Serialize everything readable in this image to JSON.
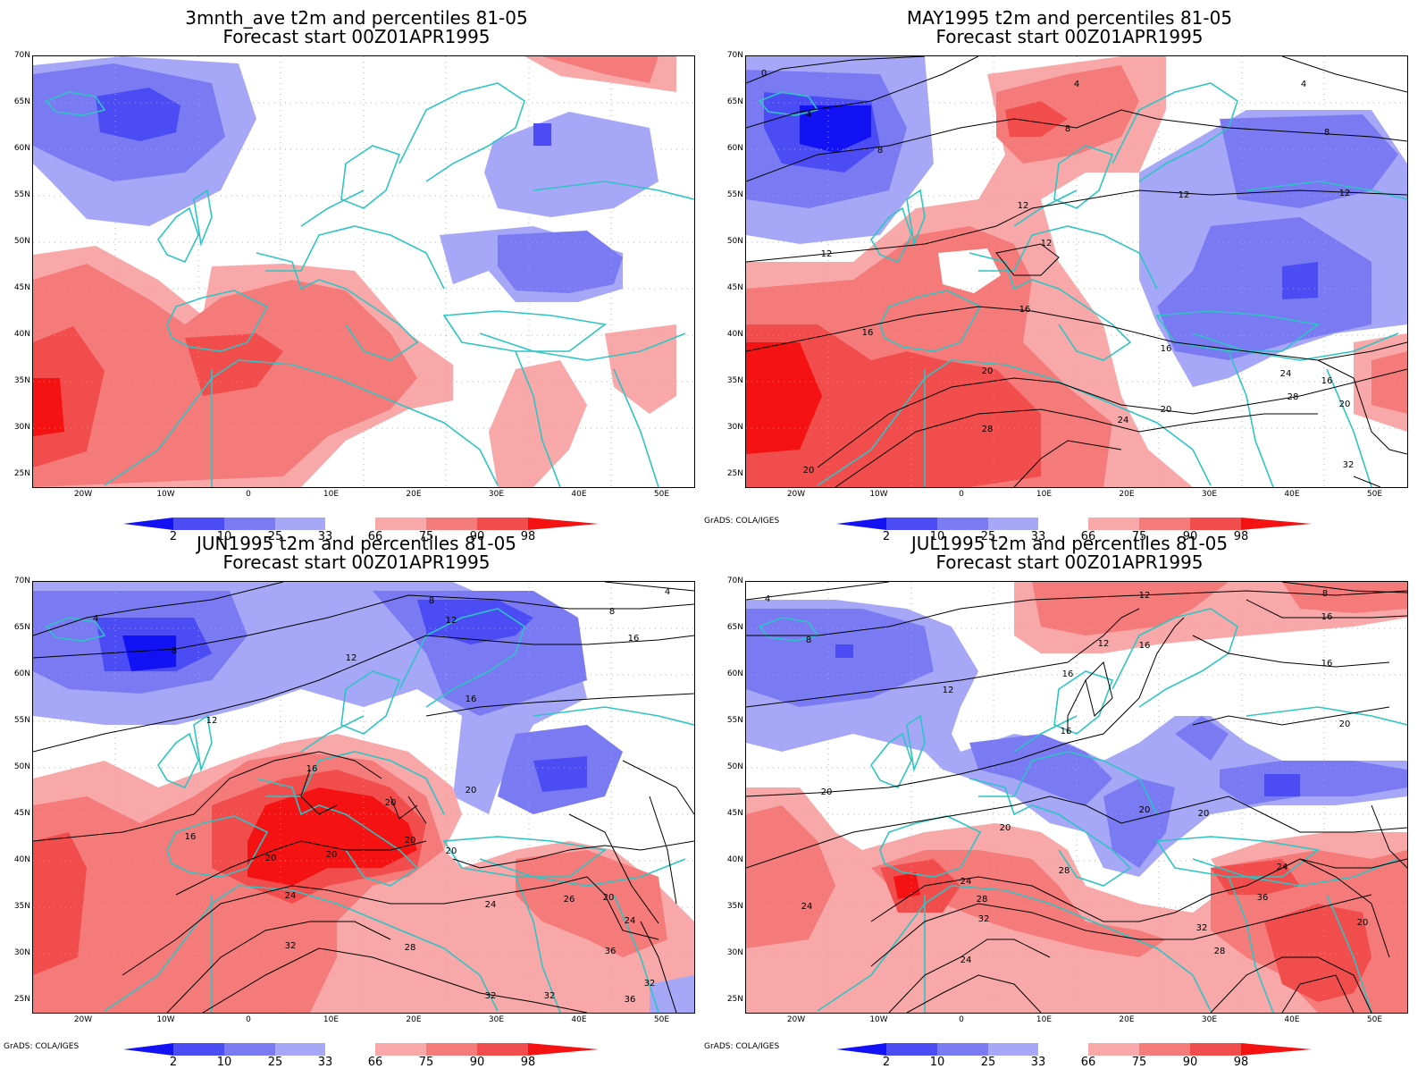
{
  "colors": {
    "blue2": "#1212f5",
    "blue10": "#4c4cf4",
    "blue25": "#7a7af3",
    "blue33": "#a7a7f8",
    "red66": "#f8a8a8",
    "red75": "#f57a7a",
    "red90": "#f24d4d",
    "red98": "#f41212",
    "coast": "#2ec4c4",
    "contour": "#000000",
    "grid": "#b0b0b0"
  },
  "lat_labels": [
    "70N",
    "65N",
    "60N",
    "55N",
    "50N",
    "45N",
    "40N",
    "35N",
    "30N",
    "25N"
  ],
  "lon_labels": [
    "20W",
    "10W",
    "0",
    "10E",
    "20E",
    "30E",
    "40E",
    "50E"
  ],
  "colorbar_labels": [
    "2",
    "10",
    "25",
    "33",
    "66",
    "75",
    "90",
    "98"
  ],
  "credit": "GrADS: COLA/IGES",
  "panels": [
    {
      "id": "p1",
      "title1": "3mnth_ave t2m and percentiles 81-05",
      "title2": "Forecast start 00Z01APR1995",
      "credit": "",
      "contour_labels": []
    },
    {
      "id": "p2",
      "title1": "MAY1995 t2m and percentiles 81-05",
      "title2": "Forecast start 00Z01APR1995",
      "credit": "GrADS: COLA/IGES",
      "contour_labels": [
        "0",
        "4",
        "4",
        "4",
        "8",
        "8",
        "8",
        "12",
        "12",
        "12",
        "12",
        "12",
        "16",
        "16",
        "16",
        "16",
        "20",
        "20",
        "20",
        "24",
        "24",
        "28",
        "28",
        "32",
        "20"
      ]
    },
    {
      "id": "p3",
      "title1": "JUN1995 t2m and percentiles 81-05",
      "title2": "Forecast start 00Z01APR1995",
      "credit": "GrADS: COLA/IGES",
      "contour_labels": [
        "4",
        "4",
        "8",
        "8",
        "8",
        "12",
        "12",
        "12",
        "16",
        "16",
        "16",
        "16",
        "20",
        "20",
        "20",
        "20",
        "20",
        "20",
        "24",
        "24",
        "24",
        "28",
        "32",
        "32",
        "32",
        "36",
        "36",
        "32",
        "26",
        "20"
      ]
    },
    {
      "id": "p4",
      "title1": "JUL1995 t2m and percentiles 81-05",
      "title2": "Forecast start 00Z01APR1995",
      "credit": "GrADS: COLA/IGES",
      "contour_labels": [
        "4",
        "8",
        "8",
        "12",
        "12",
        "12",
        "16",
        "16",
        "16",
        "16",
        "16",
        "20",
        "20",
        "20",
        "20",
        "20",
        "24",
        "24",
        "24",
        "28",
        "28",
        "32",
        "32",
        "36",
        "24",
        "28",
        "20"
      ]
    }
  ]
}
